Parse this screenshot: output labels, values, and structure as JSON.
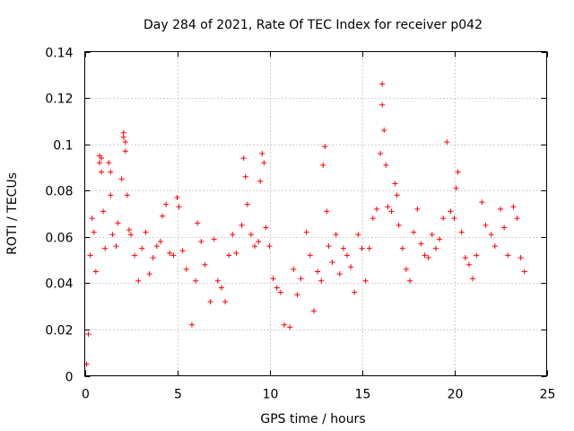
{
  "chart_data": {
    "type": "scatter",
    "title": "Day 284 of 2021, Rate Of TEC Index for receiver p042",
    "xlabel": "GPS time / hours",
    "ylabel": "ROTI / TECUs",
    "xlim": [
      0,
      25
    ],
    "ylim": [
      0,
      0.14
    ],
    "xticks": [
      "0",
      "5",
      "10",
      "15",
      "20",
      "25"
    ],
    "yticks": [
      "0",
      "0.02",
      "0.04",
      "0.06",
      "0.08",
      "0.1",
      "0.12",
      "0.14"
    ],
    "grid": true,
    "marker": "+",
    "color": "#ff0000",
    "series": [
      {
        "name": "ROTI",
        "points": [
          [
            0.1,
            0.005
          ],
          [
            0.2,
            0.018
          ],
          [
            0.3,
            0.052
          ],
          [
            0.4,
            0.068
          ],
          [
            0.5,
            0.062
          ],
          [
            0.6,
            0.045
          ],
          [
            0.8,
            0.092
          ],
          [
            0.8,
            0.095
          ],
          [
            0.9,
            0.088
          ],
          [
            0.9,
            0.094
          ],
          [
            1.0,
            0.071
          ],
          [
            1.1,
            0.055
          ],
          [
            1.3,
            0.092
          ],
          [
            1.4,
            0.088
          ],
          [
            1.4,
            0.078
          ],
          [
            1.5,
            0.061
          ],
          [
            1.7,
            0.056
          ],
          [
            1.8,
            0.066
          ],
          [
            2.0,
            0.085
          ],
          [
            2.1,
            0.105
          ],
          [
            2.1,
            0.103
          ],
          [
            2.2,
            0.101
          ],
          [
            2.2,
            0.097
          ],
          [
            2.3,
            0.078
          ],
          [
            2.4,
            0.063
          ],
          [
            2.5,
            0.061
          ],
          [
            2.7,
            0.052
          ],
          [
            2.9,
            0.041
          ],
          [
            3.1,
            0.055
          ],
          [
            3.3,
            0.062
          ],
          [
            3.5,
            0.044
          ],
          [
            3.7,
            0.051
          ],
          [
            3.9,
            0.056
          ],
          [
            4.1,
            0.058
          ],
          [
            4.2,
            0.069
          ],
          [
            4.4,
            0.074
          ],
          [
            4.6,
            0.053
          ],
          [
            4.8,
            0.052
          ],
          [
            5.0,
            0.077
          ],
          [
            5.1,
            0.073
          ],
          [
            5.3,
            0.054
          ],
          [
            5.5,
            0.046
          ],
          [
            5.8,
            0.022
          ],
          [
            6.0,
            0.041
          ],
          [
            6.1,
            0.066
          ],
          [
            6.3,
            0.058
          ],
          [
            6.5,
            0.048
          ],
          [
            6.8,
            0.032
          ],
          [
            7.0,
            0.059
          ],
          [
            7.2,
            0.041
          ],
          [
            7.4,
            0.038
          ],
          [
            7.6,
            0.032
          ],
          [
            7.8,
            0.052
          ],
          [
            8.0,
            0.061
          ],
          [
            8.2,
            0.053
          ],
          [
            8.5,
            0.065
          ],
          [
            8.6,
            0.094
          ],
          [
            8.7,
            0.086
          ],
          [
            8.8,
            0.074
          ],
          [
            9.0,
            0.061
          ],
          [
            9.2,
            0.056
          ],
          [
            9.4,
            0.058
          ],
          [
            9.5,
            0.084
          ],
          [
            9.6,
            0.096
          ],
          [
            9.7,
            0.092
          ],
          [
            9.8,
            0.064
          ],
          [
            10.0,
            0.056
          ],
          [
            10.2,
            0.042
          ],
          [
            10.4,
            0.038
          ],
          [
            10.6,
            0.036
          ],
          [
            10.8,
            0.022
          ],
          [
            11.1,
            0.021
          ],
          [
            11.3,
            0.046
          ],
          [
            11.5,
            0.035
          ],
          [
            11.7,
            0.042
          ],
          [
            12.0,
            0.062
          ],
          [
            12.2,
            0.052
          ],
          [
            12.4,
            0.028
          ],
          [
            12.6,
            0.045
          ],
          [
            12.8,
            0.041
          ],
          [
            12.9,
            0.091
          ],
          [
            13.0,
            0.099
          ],
          [
            13.1,
            0.071
          ],
          [
            13.2,
            0.056
          ],
          [
            13.4,
            0.049
          ],
          [
            13.6,
            0.061
          ],
          [
            13.8,
            0.044
          ],
          [
            14.0,
            0.055
          ],
          [
            14.2,
            0.052
          ],
          [
            14.4,
            0.047
          ],
          [
            14.6,
            0.036
          ],
          [
            14.8,
            0.061
          ],
          [
            15.0,
            0.055
          ],
          [
            15.2,
            0.041
          ],
          [
            15.4,
            0.055
          ],
          [
            15.6,
            0.068
          ],
          [
            15.8,
            0.072
          ],
          [
            16.0,
            0.096
          ],
          [
            16.1,
            0.126
          ],
          [
            16.1,
            0.117
          ],
          [
            16.2,
            0.106
          ],
          [
            16.3,
            0.091
          ],
          [
            16.4,
            0.073
          ],
          [
            16.6,
            0.071
          ],
          [
            16.8,
            0.083
          ],
          [
            16.9,
            0.078
          ],
          [
            17.0,
            0.065
          ],
          [
            17.2,
            0.055
          ],
          [
            17.4,
            0.046
          ],
          [
            17.6,
            0.041
          ],
          [
            17.8,
            0.062
          ],
          [
            18.0,
            0.072
          ],
          [
            18.2,
            0.057
          ],
          [
            18.4,
            0.052
          ],
          [
            18.6,
            0.051
          ],
          [
            18.8,
            0.061
          ],
          [
            19.0,
            0.055
          ],
          [
            19.2,
            0.059
          ],
          [
            19.4,
            0.068
          ],
          [
            19.6,
            0.101
          ],
          [
            19.8,
            0.071
          ],
          [
            20.0,
            0.068
          ],
          [
            20.1,
            0.081
          ],
          [
            20.2,
            0.088
          ],
          [
            20.4,
            0.062
          ],
          [
            20.6,
            0.051
          ],
          [
            20.8,
            0.048
          ],
          [
            21.0,
            0.042
          ],
          [
            21.2,
            0.052
          ],
          [
            21.5,
            0.075
          ],
          [
            21.7,
            0.065
          ],
          [
            22.0,
            0.061
          ],
          [
            22.2,
            0.056
          ],
          [
            22.5,
            0.072
          ],
          [
            22.7,
            0.064
          ],
          [
            22.9,
            0.052
          ],
          [
            23.2,
            0.073
          ],
          [
            23.4,
            0.068
          ],
          [
            23.6,
            0.051
          ],
          [
            23.8,
            0.045
          ]
        ]
      }
    ]
  }
}
